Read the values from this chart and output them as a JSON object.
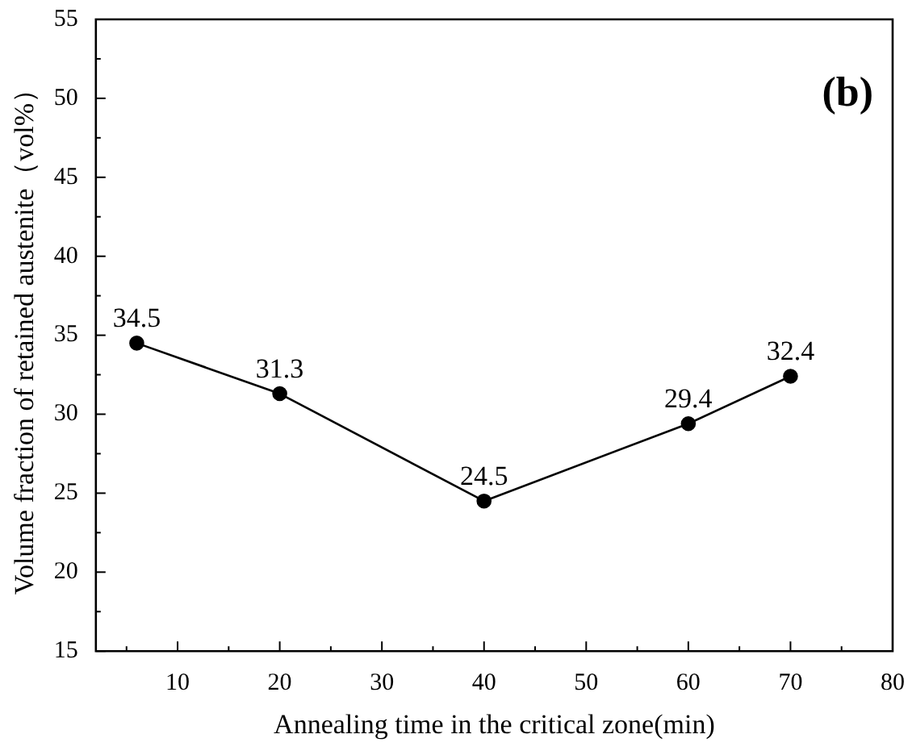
{
  "chart_data": {
    "type": "line",
    "xlabel": "Annealing time in the critical zone(min)",
    "ylabel": "Volume fraction of retained austenite（vol%）",
    "annotations": [
      "(b)"
    ],
    "x": [
      6,
      20,
      40,
      60,
      70
    ],
    "series": [
      {
        "color": "#000000",
        "values": [
          34.5,
          31.3,
          24.5,
          29.4,
          32.4
        ]
      }
    ],
    "data_labels": true,
    "marker": "circle",
    "line_style": "solid",
    "grid": false,
    "legend": false,
    "xlim": [
      2,
      80
    ],
    "xticks": [
      {
        "value": 5,
        "label": null
      },
      10,
      {
        "value": 15,
        "label": null
      },
      20,
      {
        "value": 25,
        "label": null
      },
      30,
      {
        "value": 35,
        "label": null
      },
      40,
      {
        "value": 45,
        "label": null
      },
      50,
      {
        "value": 55,
        "label": null
      },
      60,
      {
        "value": 65,
        "label": null
      },
      70,
      {
        "value": 75,
        "label": null
      },
      80
    ],
    "ylim": [
      15,
      55
    ],
    "yticks": [
      15,
      {
        "value": 17.5,
        "label": null
      },
      20,
      {
        "value": 22.5,
        "label": null
      },
      25,
      {
        "value": 27.5,
        "label": null
      },
      30,
      {
        "value": 32.5,
        "label": null
      },
      35,
      {
        "value": 37.5,
        "label": null
      },
      40,
      {
        "value": 42.5,
        "label": null
      },
      45,
      {
        "value": 47.5,
        "label": null
      },
      50,
      {
        "value": 52.5,
        "label": null
      },
      55
    ]
  }
}
